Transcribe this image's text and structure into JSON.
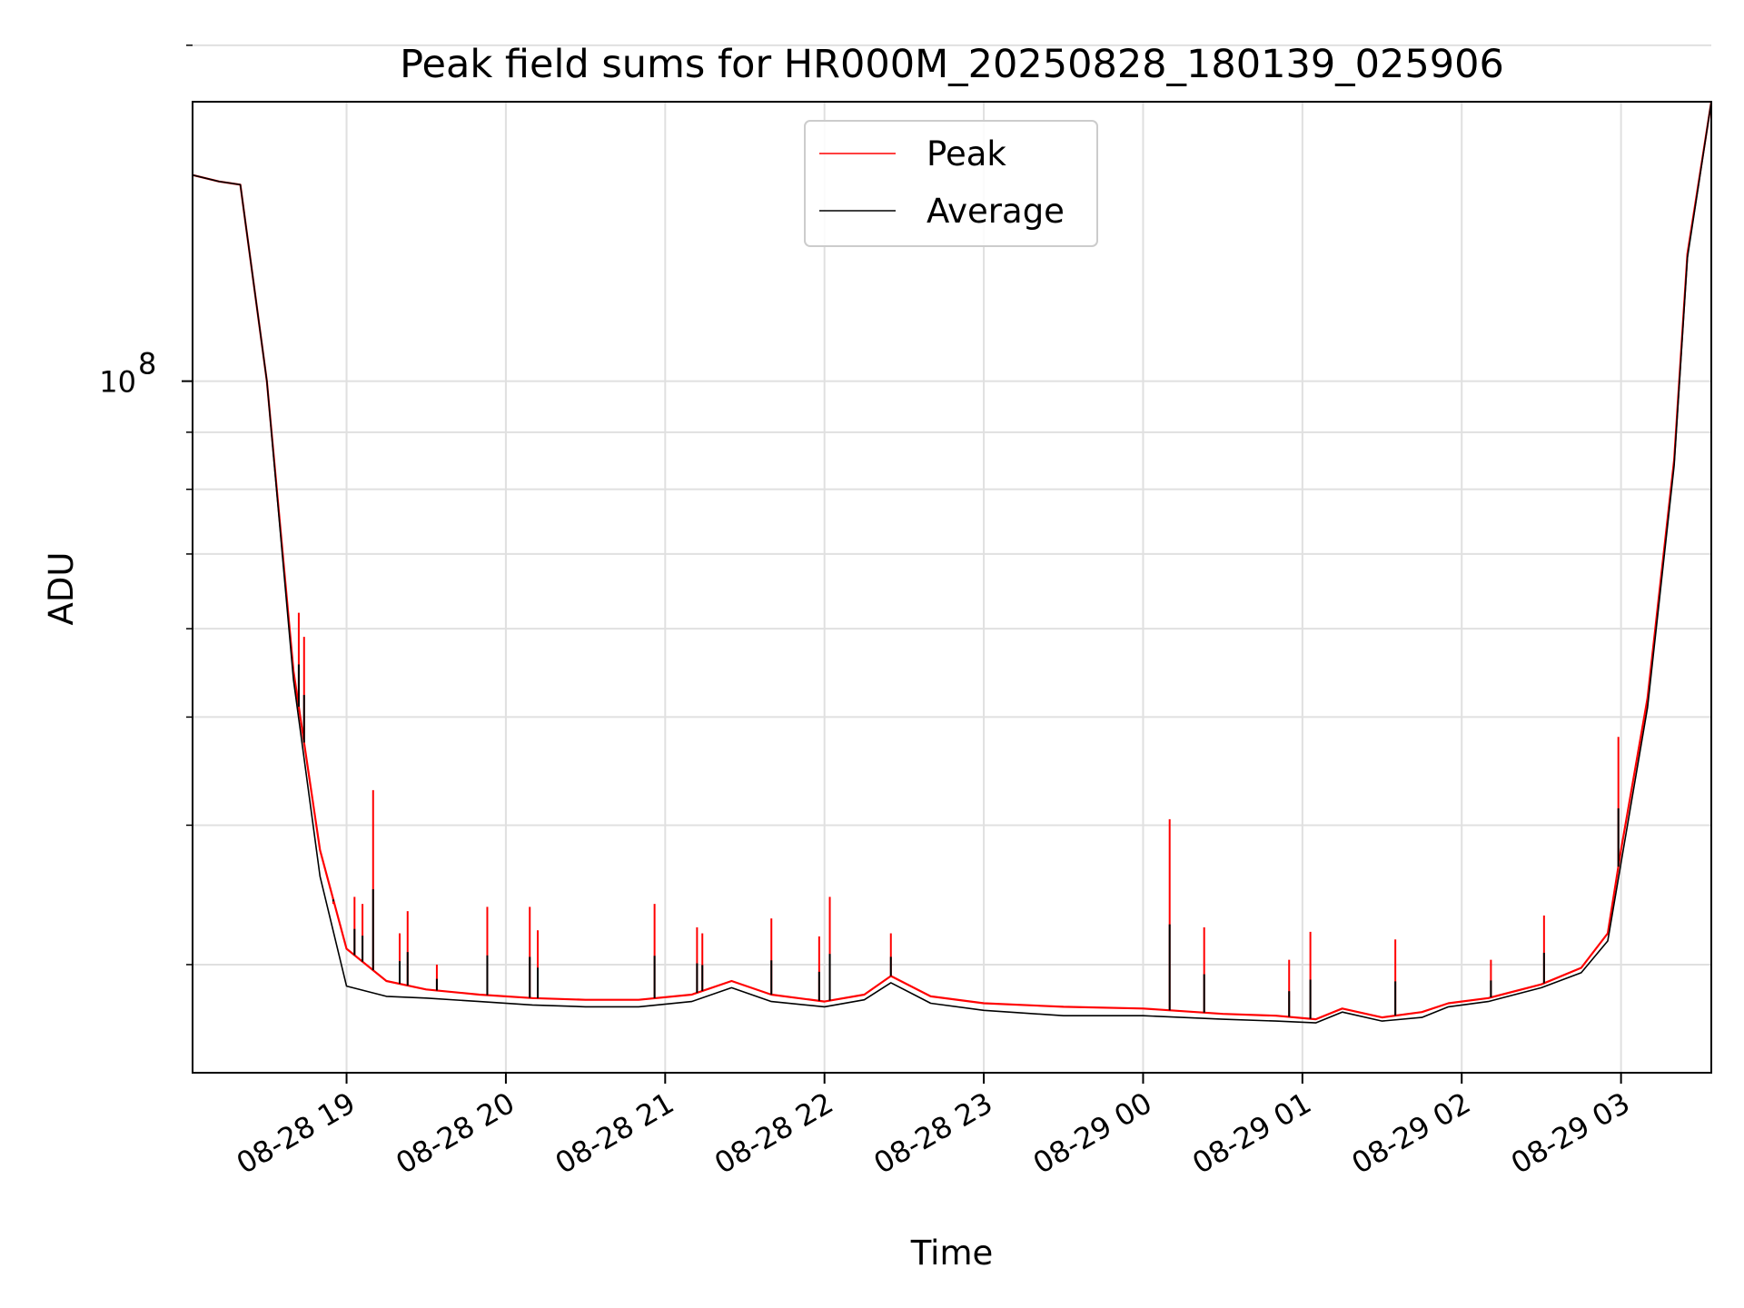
{
  "chart_data": {
    "type": "line",
    "title": "Peak field sums for HR000M_20250828_180139_025906",
    "xlabel": "Time",
    "ylabel": "ADU",
    "y_scale": "log",
    "ylim": [
      24000000,
      178000000
    ],
    "xlim": [
      "2025-08-28T18:02",
      "2025-08-29T03:34"
    ],
    "grid": true,
    "legend_position": "top-center",
    "x_ticks": [
      {
        "x": "2025-08-28T19:00",
        "label": "08-28 19"
      },
      {
        "x": "2025-08-28T20:00",
        "label": "08-28 20"
      },
      {
        "x": "2025-08-28T21:00",
        "label": "08-28 21"
      },
      {
        "x": "2025-08-28T22:00",
        "label": "08-28 22"
      },
      {
        "x": "2025-08-28T23:00",
        "label": "08-28 23"
      },
      {
        "x": "2025-08-29T00:00",
        "label": "08-29 00"
      },
      {
        "x": "2025-08-29T01:00",
        "label": "08-29 01"
      },
      {
        "x": "2025-08-29T02:00",
        "label": "08-29 02"
      },
      {
        "x": "2025-08-29T03:00",
        "label": "08-29 03"
      }
    ],
    "y_major_ticks": [
      {
        "value": 100000000,
        "base": "10",
        "exponent": "8"
      }
    ],
    "y_minor_ticks": [
      30000000,
      40000000,
      50000000,
      60000000,
      70000000,
      80000000,
      90000000,
      200000000
    ],
    "series": [
      {
        "name": "Peak",
        "color": "#ff0000",
        "x": [
          "2025-08-28T18:02",
          "2025-08-28T18:12",
          "2025-08-28T18:20",
          "2025-08-28T18:30",
          "2025-08-28T18:40",
          "2025-08-28T18:50",
          "2025-08-28T19:00",
          "2025-08-28T19:15",
          "2025-08-28T19:30",
          "2025-08-28T19:50",
          "2025-08-28T20:10",
          "2025-08-28T20:30",
          "2025-08-28T20:50",
          "2025-08-28T21:10",
          "2025-08-28T21:25",
          "2025-08-28T21:40",
          "2025-08-28T22:00",
          "2025-08-28T22:15",
          "2025-08-28T22:25",
          "2025-08-28T22:40",
          "2025-08-28T23:00",
          "2025-08-28T23:30",
          "2025-08-29T00:00",
          "2025-08-29T00:30",
          "2025-08-29T00:50",
          "2025-08-29T01:05",
          "2025-08-29T01:15",
          "2025-08-29T01:30",
          "2025-08-29T01:45",
          "2025-08-29T01:55",
          "2025-08-29T02:10",
          "2025-08-29T02:30",
          "2025-08-29T02:45",
          "2025-08-29T02:55",
          "2025-08-29T03:00",
          "2025-08-29T03:10",
          "2025-08-29T03:20",
          "2025-08-29T03:25",
          "2025-08-29T03:34"
        ],
        "y": [
          153000000,
          151000000,
          150000000,
          100000000,
          55000000,
          38000000,
          31000000,
          29000000,
          28500000,
          28200000,
          28000000,
          27900000,
          27900000,
          28200000,
          29000000,
          28200000,
          27800000,
          28200000,
          29300000,
          28100000,
          27700000,
          27500000,
          27400000,
          27100000,
          27000000,
          26800000,
          27400000,
          26900000,
          27200000,
          27700000,
          28000000,
          28800000,
          29800000,
          32000000,
          38000000,
          52000000,
          85000000,
          130000000,
          178000000
        ],
        "spikes": [
          {
            "x": "2025-08-28T18:42",
            "y": 62000000
          },
          {
            "x": "2025-08-28T18:44",
            "y": 59000000
          },
          {
            "x": "2025-08-28T18:55",
            "y": 34000000
          },
          {
            "x": "2025-08-28T19:03",
            "y": 34500000
          },
          {
            "x": "2025-08-28T19:06",
            "y": 34000000
          },
          {
            "x": "2025-08-28T19:10",
            "y": 43000000
          },
          {
            "x": "2025-08-28T19:20",
            "y": 32000000
          },
          {
            "x": "2025-08-28T19:23",
            "y": 33500000
          },
          {
            "x": "2025-08-28T19:34",
            "y": 30000000
          },
          {
            "x": "2025-08-28T19:53",
            "y": 33800000
          },
          {
            "x": "2025-08-28T20:09",
            "y": 33800000
          },
          {
            "x": "2025-08-28T20:12",
            "y": 32200000
          },
          {
            "x": "2025-08-28T20:56",
            "y": 34000000
          },
          {
            "x": "2025-08-28T21:12",
            "y": 32400000
          },
          {
            "x": "2025-08-28T21:14",
            "y": 32000000
          },
          {
            "x": "2025-08-28T21:40",
            "y": 33000000
          },
          {
            "x": "2025-08-28T21:58",
            "y": 31800000
          },
          {
            "x": "2025-08-28T22:02",
            "y": 34500000
          },
          {
            "x": "2025-08-28T22:25",
            "y": 32000000
          },
          {
            "x": "2025-08-29T00:10",
            "y": 40500000
          },
          {
            "x": "2025-08-29T00:23",
            "y": 32400000
          },
          {
            "x": "2025-08-29T00:55",
            "y": 30300000
          },
          {
            "x": "2025-08-29T01:03",
            "y": 32100000
          },
          {
            "x": "2025-08-29T01:35",
            "y": 31600000
          },
          {
            "x": "2025-08-29T02:11",
            "y": 30300000
          },
          {
            "x": "2025-08-29T02:31",
            "y": 33200000
          },
          {
            "x": "2025-08-29T02:59",
            "y": 48000000
          }
        ]
      },
      {
        "name": "Average",
        "color": "#000000",
        "x": [
          "2025-08-28T18:02",
          "2025-08-28T18:12",
          "2025-08-28T18:20",
          "2025-08-28T18:30",
          "2025-08-28T18:40",
          "2025-08-28T18:50",
          "2025-08-28T19:00",
          "2025-08-28T19:15",
          "2025-08-28T19:30",
          "2025-08-28T19:50",
          "2025-08-28T20:10",
          "2025-08-28T20:30",
          "2025-08-28T20:50",
          "2025-08-28T21:10",
          "2025-08-28T21:25",
          "2025-08-28T21:40",
          "2025-08-28T22:00",
          "2025-08-28T22:15",
          "2025-08-28T22:25",
          "2025-08-28T22:40",
          "2025-08-28T23:00",
          "2025-08-28T23:30",
          "2025-08-29T00:00",
          "2025-08-29T00:30",
          "2025-08-29T00:50",
          "2025-08-29T01:05",
          "2025-08-29T01:15",
          "2025-08-29T01:30",
          "2025-08-29T01:45",
          "2025-08-29T01:55",
          "2025-08-29T02:10",
          "2025-08-29T02:30",
          "2025-08-29T02:45",
          "2025-08-29T02:55",
          "2025-08-29T03:00",
          "2025-08-29T03:10",
          "2025-08-29T03:20",
          "2025-08-29T03:25",
          "2025-08-29T03:34"
        ],
        "y": [
          153000000,
          151000000,
          150000000,
          100000000,
          54000000,
          36000000,
          28700000,
          28100000,
          28000000,
          27800000,
          27600000,
          27500000,
          27500000,
          27800000,
          28600000,
          27800000,
          27500000,
          27900000,
          28900000,
          27700000,
          27300000,
          27000000,
          27000000,
          26800000,
          26700000,
          26600000,
          27200000,
          26700000,
          26900000,
          27500000,
          27800000,
          28600000,
          29500000,
          31500000,
          37000000,
          51000000,
          84000000,
          129000000,
          178000000
        ]
      }
    ]
  }
}
